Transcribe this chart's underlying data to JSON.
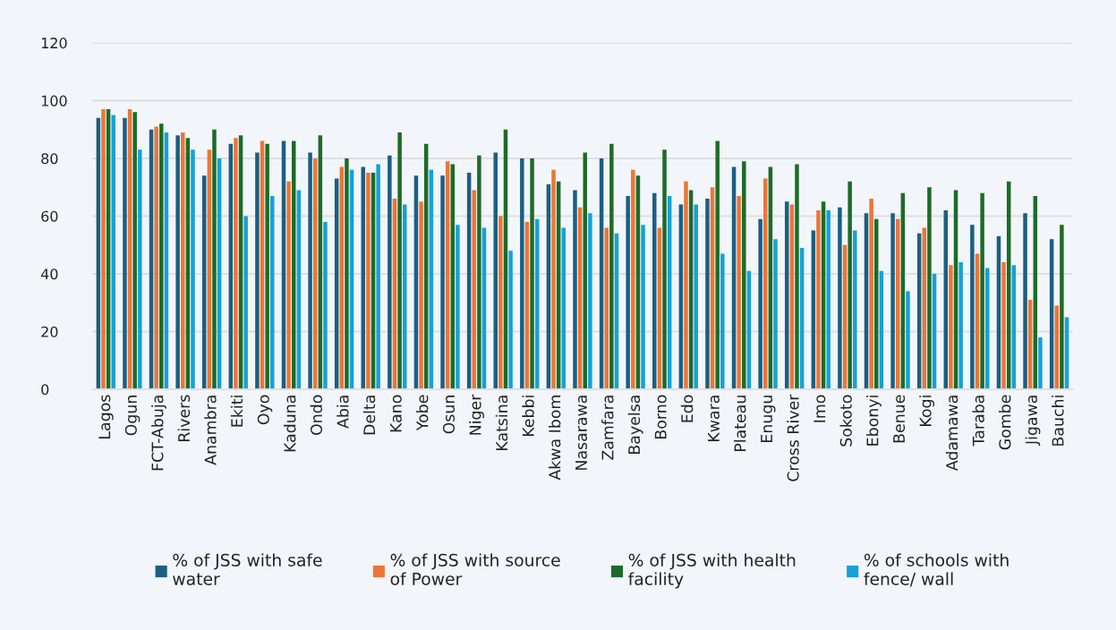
{
  "chart_data": {
    "type": "bar",
    "categories": [
      "Lagos",
      "Ogun",
      "FCT-Abuja",
      "Rivers",
      "Anambra",
      "Ekiti",
      "Oyo",
      "Kaduna",
      "Ondo",
      "Abia",
      "Delta",
      "Kano",
      "Yobe",
      "Osun",
      "Niger",
      "Katsina",
      "Kebbi",
      "Akwa Ibom",
      "Nasarawa",
      "Zamfara",
      "Bayelsa",
      "Borno",
      "Edo",
      "Kwara",
      "Plateau",
      "Enugu",
      "Cross River",
      "Imo",
      "Sokoto",
      "Ebonyi",
      "Benue",
      "Kogi",
      "Adamawa",
      "Taraba",
      "Gombe",
      "Jigawa",
      "Bauchi"
    ],
    "series": [
      {
        "name": "% of JSS with safe water",
        "color": "#1b5f82",
        "values": [
          94,
          94,
          90,
          88,
          74,
          85,
          82,
          86,
          82,
          73,
          77,
          81,
          74,
          74,
          75,
          82,
          80,
          71,
          69,
          80,
          67,
          68,
          64,
          66,
          77,
          59,
          65,
          55,
          63,
          61,
          61,
          54,
          62,
          57,
          53,
          61,
          52
        ]
      },
      {
        "name": "% of JSS with source of Power",
        "color": "#ed7536",
        "values": [
          97,
          97,
          91,
          89,
          83,
          87,
          86,
          72,
          80,
          77,
          75,
          66,
          65,
          79,
          69,
          60,
          58,
          76,
          63,
          56,
          76,
          56,
          72,
          70,
          67,
          73,
          64,
          62,
          50,
          66,
          59,
          56,
          43,
          47,
          44,
          31,
          29
        ]
      },
      {
        "name": "% of JSS with health facility",
        "color": "#1d6b28",
        "values": [
          97,
          96,
          92,
          87,
          90,
          88,
          85,
          86,
          88,
          80,
          75,
          89,
          85,
          78,
          81,
          90,
          80,
          72,
          82,
          85,
          74,
          83,
          69,
          86,
          79,
          77,
          78,
          65,
          72,
          59,
          68,
          70,
          69,
          68,
          72,
          67,
          57
        ]
      },
      {
        "name": "% of schools with fence/ wall",
        "color": "#15a1d9",
        "values": [
          95,
          83,
          89,
          83,
          80,
          60,
          67,
          69,
          58,
          76,
          78,
          64,
          76,
          57,
          56,
          48,
          59,
          56,
          61,
          54,
          57,
          67,
          64,
          47,
          41,
          52,
          49,
          62,
          55,
          41,
          34,
          40,
          44,
          42,
          43,
          18,
          25
        ]
      }
    ],
    "ylim": [
      0,
      120
    ],
    "yticks": [
      0,
      20,
      40,
      60,
      80,
      100,
      120
    ],
    "grid": "y",
    "legend": "bottom"
  }
}
